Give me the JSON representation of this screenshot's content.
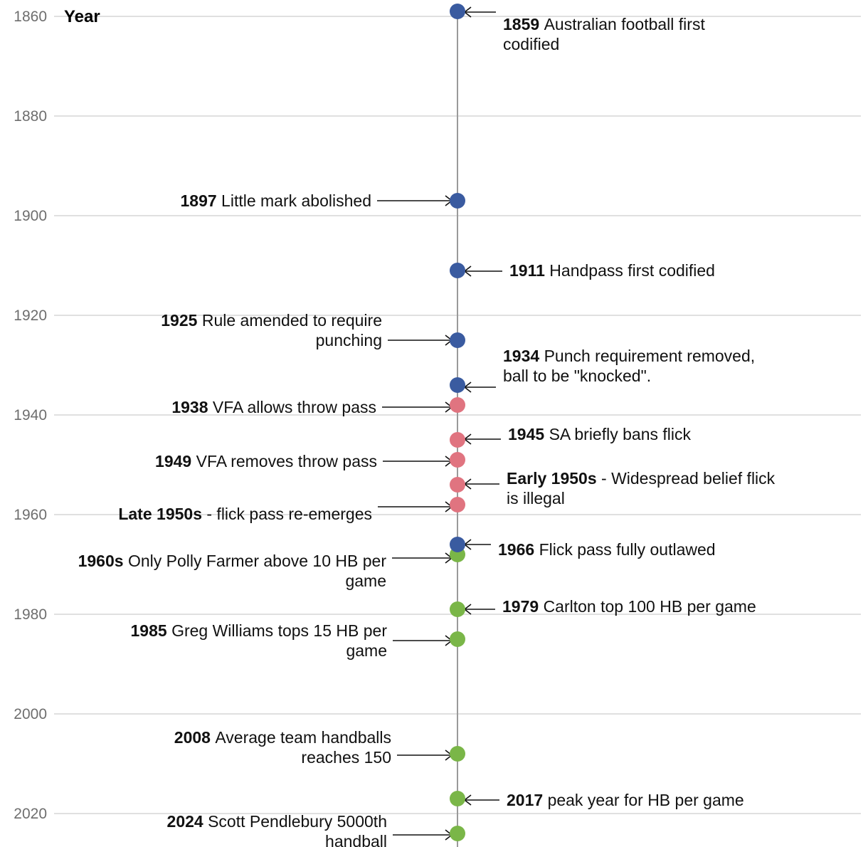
{
  "chart_data": {
    "type": "scatter",
    "title": "",
    "ylabel": "Year",
    "xlabel": "",
    "ylim": [
      1856,
      2027
    ],
    "yticks": [
      1860,
      1880,
      1900,
      1920,
      1940,
      1960,
      1980,
      2000,
      2020
    ],
    "grid": true,
    "colors": {
      "blue": "#3a5ba0",
      "red": "#e07480",
      "green": "#7ab648",
      "spine": "#9a9a9a"
    },
    "events": [
      {
        "year": 1859,
        "color": "blue",
        "side": "right",
        "bold": "1859",
        "lines": [
          "Australian football first",
          "codified"
        ]
      },
      {
        "year": 1897,
        "color": "blue",
        "side": "left",
        "bold": "1897",
        "lines": [
          "Little mark abolished"
        ]
      },
      {
        "year": 1911,
        "color": "blue",
        "side": "right",
        "bold": "1911",
        "lines": [
          "Handpass first codified"
        ]
      },
      {
        "year": 1925,
        "color": "blue",
        "side": "left",
        "bold": "1925",
        "lines": [
          "Rule amended to require",
          "punching"
        ]
      },
      {
        "year": 1934,
        "color": "blue",
        "side": "right",
        "bold": "1934",
        "lines": [
          "Punch requirement removed,",
          "ball to be \"knocked\"."
        ]
      },
      {
        "year": 1938,
        "color": "red",
        "side": "left",
        "bold": "1938",
        "lines": [
          "VFA allows throw pass"
        ]
      },
      {
        "year": 1945,
        "color": "red",
        "side": "right",
        "bold": "1945",
        "lines": [
          "SA briefly bans flick"
        ]
      },
      {
        "year": 1949,
        "color": "red",
        "side": "left",
        "bold": "1949",
        "lines": [
          "VFA removes throw pass"
        ]
      },
      {
        "year": 1954,
        "color": "red",
        "side": "right",
        "bold": "Early 1950s",
        "lines": [
          "- Widespread belief flick",
          "is illegal"
        ]
      },
      {
        "year": 1958,
        "color": "red",
        "side": "left",
        "bold": "Late 1950s",
        "lines": [
          "- flick pass re-emerges"
        ]
      },
      {
        "year": 1968,
        "color": "green",
        "side": "left",
        "bold": "1960s",
        "lines": [
          "Only Polly Farmer above 10 HB per",
          "game"
        ]
      },
      {
        "year": 1966,
        "color": "blue",
        "side": "right",
        "bold": "1966",
        "lines": [
          "Flick pass fully outlawed"
        ]
      },
      {
        "year": 1979,
        "color": "green",
        "side": "right",
        "bold": "1979",
        "lines": [
          "Carlton top 100 HB per game"
        ]
      },
      {
        "year": 1985,
        "color": "green",
        "side": "left",
        "bold": "1985",
        "lines": [
          "Greg Williams tops 15 HB per",
          "game"
        ]
      },
      {
        "year": 2008,
        "color": "green",
        "side": "left",
        "bold": "2008",
        "lines": [
          "Average team handballs",
          "reaches 150"
        ]
      },
      {
        "year": 2017,
        "color": "green",
        "side": "right",
        "bold": "2017",
        "lines": [
          "peak year for HB per game"
        ]
      },
      {
        "year": 2024,
        "color": "green",
        "side": "left",
        "bold": "2024",
        "lines": [
          "Scott Pendlebury 5000th",
          "handball"
        ]
      }
    ]
  }
}
